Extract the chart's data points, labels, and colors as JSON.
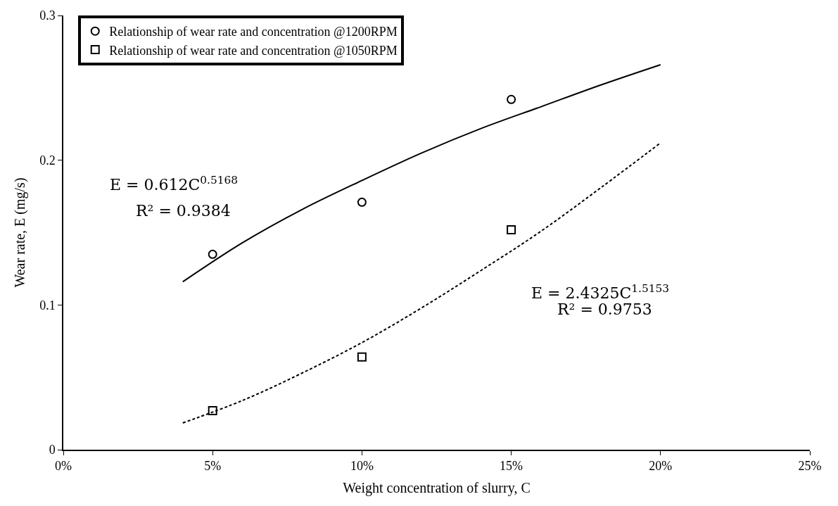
{
  "chart_data": {
    "type": "scatter",
    "xlabel": "Weight concentration of slurry, C",
    "ylabel": "Wear rate, E (mg/s)",
    "xlim": [
      0,
      25
    ],
    "xticks": [
      {
        "value": 0,
        "label": "0%"
      },
      {
        "value": 5,
        "label": "5%"
      },
      {
        "value": 10,
        "label": "10%"
      },
      {
        "value": 15,
        "label": "15%"
      },
      {
        "value": 20,
        "label": "20%"
      },
      {
        "value": 25,
        "label": "25%"
      }
    ],
    "ylim": [
      0,
      0.3
    ],
    "yticks": [
      0,
      0.1,
      0.2,
      0.3
    ],
    "legend": "top left",
    "series": [
      {
        "name": "Relationship of wear rate and concentration @1200RPM",
        "marker": "circle",
        "color": "#000000",
        "x": [
          5,
          10,
          15
        ],
        "values": [
          0.135,
          0.171,
          0.242
        ]
      },
      {
        "name": "Relationship of wear rate and concentration @1050RPM",
        "marker": "square",
        "color": "#000000",
        "x": [
          5,
          10,
          15
        ],
        "values": [
          0.027,
          0.064,
          0.152
        ]
      },
      {
        "type": "line",
        "line_style": "solid",
        "color": "#000000",
        "x": [
          4,
          6,
          8,
          10,
          12,
          14,
          16,
          18,
          20
        ],
        "values": [
          0.116,
          0.143,
          0.166,
          0.186,
          0.205,
          0.222,
          0.237,
          0.252,
          0.266
        ]
      },
      {
        "type": "line",
        "line_style": "dashed",
        "color": "#000000",
        "x": [
          4,
          6,
          8,
          10,
          12,
          14,
          16,
          18,
          20
        ],
        "values": [
          0.0185,
          0.034,
          0.053,
          0.074,
          0.098,
          0.124,
          0.151,
          0.181,
          0.212
        ]
      }
    ],
    "annotations": [
      "E = 0.612C$^{0.5168}$",
      "R² = 0.9384",
      "E = 2.4325C$^{1.5153}$",
      "R² = 0.9753"
    ]
  }
}
